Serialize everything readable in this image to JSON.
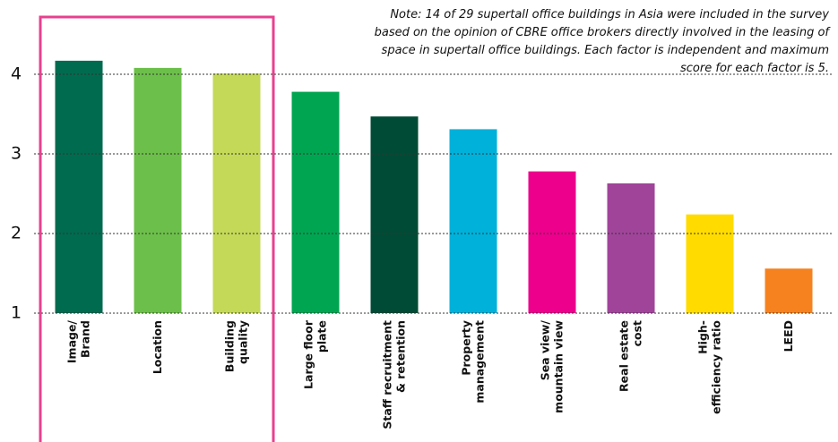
{
  "chart_data": {
    "type": "bar",
    "note": [
      "Note: 14 of 29 supertall office buildings in Asia were included in the survey",
      "based on the opinion of CBRE office brokers directly involved in the leasing of",
      "space in supertall office buildings. Each factor is independent and maximum",
      "score for each factor is 5."
    ],
    "categories": [
      "Image/\nBrand",
      "Location",
      "Building\nquality",
      "Large floor\nplate",
      "Staff recruitment\n& retention",
      "Property\nmanagement",
      "Sea view/\nmountain view",
      "Real estate\ncost",
      "High-\nefficiency ratio",
      "LEED"
    ],
    "values": [
      4.17,
      4.08,
      4.01,
      3.78,
      3.47,
      3.31,
      2.78,
      2.63,
      2.24,
      1.56
    ],
    "colors": [
      "#006b4f",
      "#6cbf4a",
      "#c3d957",
      "#00a551",
      "#004b35",
      "#00b1da",
      "#ec008c",
      "#a0449a",
      "#ffdb00",
      "#f5821f"
    ],
    "ylim": [
      1,
      4.8
    ],
    "yticks": [
      1,
      2,
      3,
      4
    ],
    "grid": true
  }
}
